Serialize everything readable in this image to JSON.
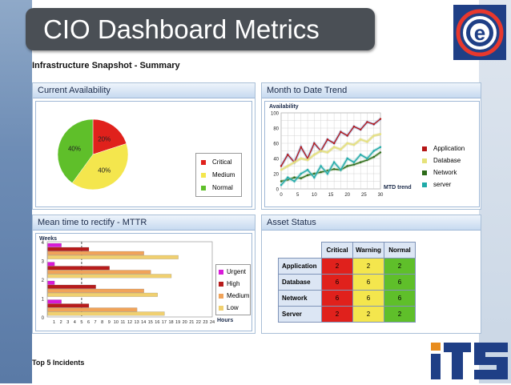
{
  "page": {
    "title": "CIO Dashboard Metrics",
    "section_title": "Infrastructure Snapshot - Summary",
    "footer_title": "Top 5 Incidents"
  },
  "colors": {
    "critical": "#e0211c",
    "medium": "#f4e64d",
    "normal": "#5fbf2a",
    "title_bar": "#4a4f55",
    "panel_header": "#c7daf0",
    "urgent": "#d81ad8",
    "high": "#b71c1c",
    "medium_bar": "#f0a35a",
    "low": "#f0d070",
    "application": "#b51616",
    "database": "#e6e27a",
    "network": "#2d6b1a",
    "server": "#1faaa8"
  },
  "logos": {
    "top_right": "e-circle-logo",
    "bottom_right": "its-logo"
  },
  "availability": {
    "title": "Current Availability",
    "chart_data": {
      "type": "pie",
      "slices": [
        {
          "label": "Critical",
          "value": 20,
          "text": "20%"
        },
        {
          "label": "Medium",
          "value": 40,
          "text": "40%"
        },
        {
          "label": "Normal",
          "value": 40,
          "text": "40%"
        }
      ],
      "legend": [
        "Critical",
        "Medium",
        "Normal"
      ]
    }
  },
  "trend": {
    "title": "Month to Date Trend",
    "chart_data": {
      "type": "line",
      "ylabel": "Availability",
      "xlabel": "MTD trend",
      "xlim": [
        0,
        30
      ],
      "ylim": [
        0,
        100
      ],
      "x_ticks": [
        "0",
        "5",
        "10",
        "15",
        "20",
        "25",
        "30"
      ],
      "y_ticks": [
        "0",
        "20",
        "40",
        "60",
        "80",
        "100"
      ],
      "series": [
        {
          "name": "Application",
          "x": [
            0,
            2,
            4,
            6,
            8,
            10,
            12,
            14,
            16,
            18,
            20,
            22,
            24,
            26,
            28,
            30
          ],
          "y": [
            30,
            45,
            35,
            55,
            40,
            60,
            50,
            65,
            60,
            75,
            70,
            82,
            78,
            88,
            85,
            92
          ]
        },
        {
          "name": "Database",
          "x": [
            0,
            2,
            4,
            6,
            8,
            10,
            12,
            14,
            16,
            18,
            20,
            22,
            24,
            26,
            28,
            30
          ],
          "y": [
            25,
            30,
            35,
            40,
            38,
            45,
            50,
            48,
            55,
            52,
            60,
            58,
            65,
            62,
            70,
            72
          ]
        },
        {
          "name": "Network",
          "x": [
            0,
            2,
            4,
            6,
            8,
            10,
            12,
            14,
            16,
            18,
            20,
            22,
            24,
            26,
            28,
            30
          ],
          "y": [
            10,
            12,
            15,
            14,
            18,
            20,
            22,
            24,
            26,
            25,
            30,
            32,
            35,
            38,
            42,
            48
          ]
        },
        {
          "name": "server",
          "x": [
            0,
            2,
            4,
            6,
            8,
            10,
            12,
            14,
            16,
            18,
            20,
            22,
            24,
            26,
            28,
            30
          ],
          "y": [
            5,
            15,
            10,
            20,
            25,
            15,
            30,
            20,
            35,
            25,
            40,
            35,
            45,
            40,
            50,
            55
          ]
        }
      ]
    }
  },
  "mttr": {
    "title": "Mean time to rectify - MTTR",
    "chart_data": {
      "type": "bar",
      "ylabel": "Weeks",
      "xlabel": "Hours",
      "xlim": [
        0,
        24
      ],
      "categories": [
        "0",
        "1",
        "2",
        "3",
        "4"
      ],
      "x_ticks": [
        "1",
        "2",
        "3",
        "4",
        "5",
        "6",
        "7",
        "8",
        "9",
        "10",
        "11",
        "12",
        "13",
        "14",
        "15",
        "16",
        "17",
        "18",
        "19",
        "20",
        "21",
        "22",
        "23",
        "24"
      ],
      "series": [
        {
          "name": "Urgent",
          "values": [
            2,
            1,
            1,
            2,
            3
          ]
        },
        {
          "name": "High",
          "values": [
            6,
            7,
            9,
            6,
            5
          ]
        },
        {
          "name": "Medium",
          "values": [
            13,
            14,
            15,
            14,
            11
          ]
        },
        {
          "name": "Low",
          "values": [
            17,
            16,
            18,
            19,
            19
          ]
        }
      ]
    }
  },
  "assets": {
    "title": "Asset Status",
    "columns": [
      "Critical",
      "Warning",
      "Normal"
    ],
    "rows": [
      {
        "label": "Application",
        "values": [
          "2",
          "2",
          "2"
        ]
      },
      {
        "label": "Database",
        "values": [
          "6",
          "6",
          "6"
        ]
      },
      {
        "label": "Network",
        "values": [
          "6",
          "6",
          "6"
        ]
      },
      {
        "label": "Server",
        "values": [
          "2",
          "2",
          "2"
        ]
      }
    ]
  }
}
